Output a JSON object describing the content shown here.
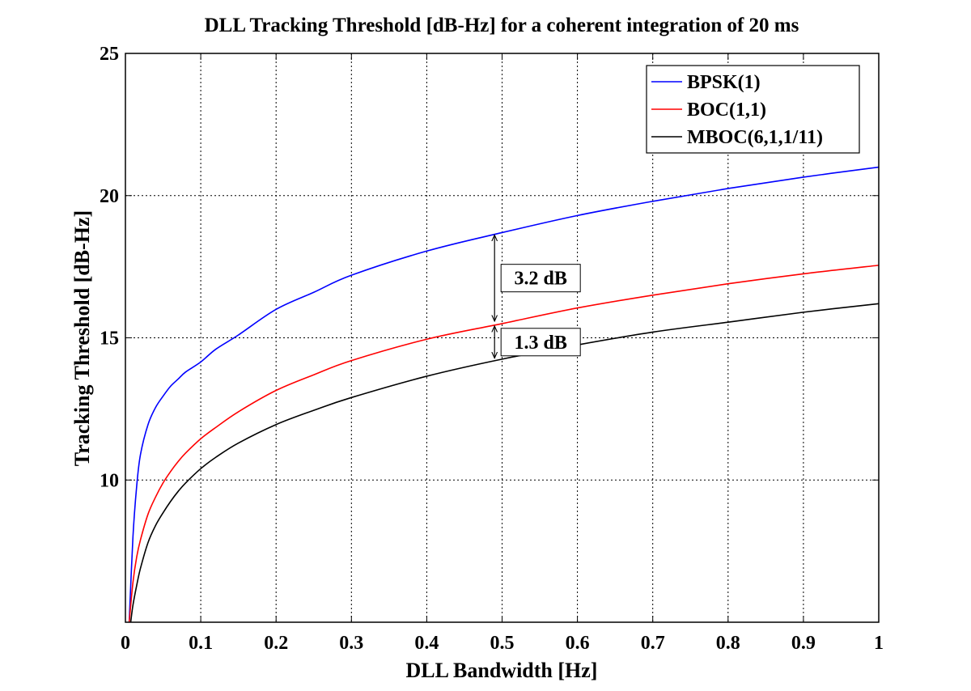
{
  "chart_data": {
    "type": "line",
    "title": "DLL Tracking Threshold [dB-Hz] for a coherent integration of 20 ms",
    "xlabel": "DLL Bandwidth [Hz]",
    "ylabel": "Tracking Threshold [dB-Hz]",
    "xlim": [
      0,
      1
    ],
    "ylim": [
      5,
      25
    ],
    "grid": true,
    "legend_position": "top-right",
    "xticks": [
      0,
      0.1,
      0.2,
      0.3,
      0.4,
      0.5,
      0.6,
      0.7,
      0.8,
      0.9,
      1
    ],
    "xtick_labels": [
      "0",
      "0.1",
      "0.2",
      "0.3",
      "0.4",
      "0.5",
      "0.6",
      "0.7",
      "0.8",
      "0.9",
      "1"
    ],
    "yticks": [
      10,
      15,
      20,
      25
    ],
    "ytick_labels": [
      "10",
      "15",
      "20",
      "25"
    ],
    "series": [
      {
        "name": "BPSK(1)",
        "color": "#0000ff",
        "x": [
          0.005,
          0.01,
          0.015,
          0.02,
          0.03,
          0.04,
          0.05,
          0.06,
          0.07,
          0.08,
          0.1,
          0.12,
          0.15,
          0.2,
          0.25,
          0.3,
          0.4,
          0.5,
          0.6,
          0.7,
          0.8,
          0.9,
          1.0
        ],
        "y": [
          5.0,
          8.0,
          9.8,
          10.9,
          11.95,
          12.55,
          12.95,
          13.3,
          13.55,
          13.8,
          14.15,
          14.6,
          15.1,
          16.0,
          16.6,
          17.2,
          18.05,
          18.7,
          19.3,
          19.8,
          20.25,
          20.65,
          21.0
        ]
      },
      {
        "name": "BOC(1,1)",
        "color": "#ff0000",
        "x": [
          0.005,
          0.01,
          0.015,
          0.02,
          0.03,
          0.04,
          0.05,
          0.06,
          0.07,
          0.08,
          0.1,
          0.12,
          0.15,
          0.2,
          0.25,
          0.3,
          0.4,
          0.5,
          0.6,
          0.7,
          0.8,
          0.9,
          1.0
        ],
        "y": [
          5.0,
          6.4,
          7.3,
          7.9,
          8.8,
          9.4,
          9.9,
          10.3,
          10.65,
          10.95,
          11.45,
          11.85,
          12.4,
          13.15,
          13.7,
          14.2,
          14.95,
          15.5,
          16.05,
          16.5,
          16.9,
          17.25,
          17.55
        ]
      },
      {
        "name": "MBOC(6,1,1/11)",
        "color": "#000000",
        "x": [
          0.007,
          0.01,
          0.015,
          0.02,
          0.03,
          0.04,
          0.05,
          0.06,
          0.07,
          0.08,
          0.1,
          0.12,
          0.15,
          0.2,
          0.25,
          0.3,
          0.4,
          0.5,
          0.6,
          0.7,
          0.8,
          0.9,
          1.0
        ],
        "y": [
          5.0,
          5.6,
          6.3,
          6.9,
          7.8,
          8.4,
          8.85,
          9.25,
          9.6,
          9.9,
          10.4,
          10.8,
          11.3,
          11.95,
          12.45,
          12.9,
          13.65,
          14.25,
          14.75,
          15.2,
          15.55,
          15.9,
          16.2
        ]
      }
    ],
    "annotations": [
      {
        "text": "3.2 dB",
        "x": 0.49,
        "y_top": 18.7,
        "y_bottom": 15.5
      },
      {
        "text": "1.3 dB",
        "x": 0.49,
        "y_top": 15.5,
        "y_bottom": 14.2
      }
    ]
  }
}
